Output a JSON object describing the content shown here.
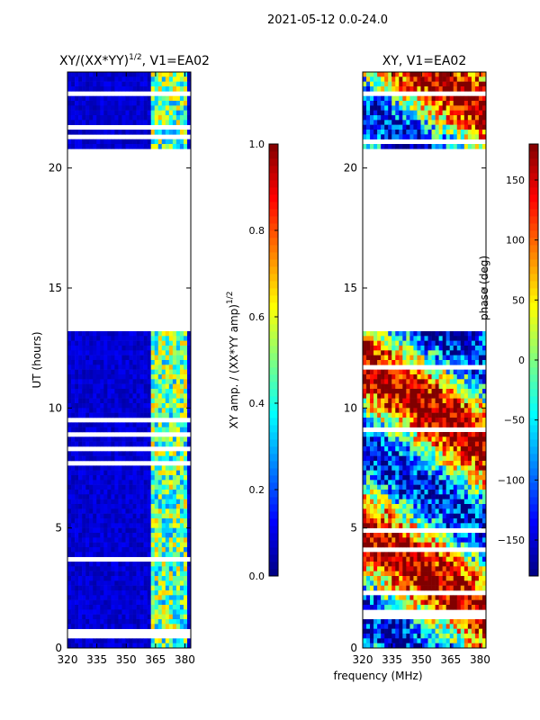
{
  "suptitle": "2021-05-12 0.0-24.0",
  "chart_data": [
    {
      "type": "heatmap",
      "title_main": "XY/(XX*YY)",
      "title_sup": "1/2",
      "title_tail": ", V1=EA02",
      "ylabel": "UT (hours)",
      "xlabel": "",
      "xlim": [
        320,
        383
      ],
      "ylim": [
        0,
        24
      ],
      "xticks": [
        320,
        335,
        350,
        365,
        380
      ],
      "yticks": [
        0,
        5,
        10,
        15,
        20
      ],
      "data_gaps_hours": [
        [
          13.2,
          20.9
        ]
      ],
      "colorbar": {
        "label_main": "XY amp. / (XX*YY amp)",
        "label_sup": "1/2",
        "range": [
          0.0,
          1.0
        ],
        "ticks": [
          "0.0",
          "0.2",
          "0.4",
          "0.6",
          "0.8",
          "1.0"
        ],
        "tick_values": [
          0.0,
          0.2,
          0.4,
          0.6,
          0.8,
          1.0
        ]
      }
    },
    {
      "type": "heatmap",
      "title": "XY, V1=EA02",
      "ylabel": "",
      "xlabel": "frequency (MHz)",
      "xlim": [
        320,
        383
      ],
      "ylim": [
        0,
        24
      ],
      "xticks": [
        320,
        335,
        350,
        365,
        380
      ],
      "yticks": [
        0,
        5,
        10,
        15,
        20
      ],
      "data_gaps_hours": [
        [
          13.2,
          20.9
        ]
      ],
      "colorbar": {
        "label": "phase (deg)",
        "range": [
          -180,
          180
        ],
        "ticks": [
          "−150",
          "−100",
          "−50",
          "0",
          "50",
          "100",
          "150"
        ],
        "tick_values": [
          -150,
          -100,
          -50,
          0,
          50,
          100,
          150
        ]
      }
    }
  ]
}
